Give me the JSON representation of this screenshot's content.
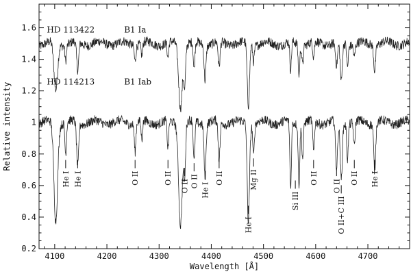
{
  "chart_data": {
    "type": "line",
    "title": "",
    "xlabel": "Wavelength [Å]",
    "ylabel": "Relative intensity",
    "xlim": [
      4070,
      4780
    ],
    "ylim": [
      0.2,
      1.75
    ],
    "xticks": [
      4100,
      4200,
      4300,
      4400,
      4500,
      4600,
      4700
    ],
    "yticks": [
      0.2,
      0.4,
      0.6,
      0.8,
      1,
      1.2,
      1.4,
      1.6
    ],
    "ytick_labels": [
      "0.2",
      "0.4",
      "0.6",
      "0.8",
      "1",
      "1.2",
      "1.4",
      "1.6"
    ],
    "grid": false,
    "series": [
      {
        "name": "HD 113422",
        "spectral_type": "B1 Ia",
        "baseline": 1.5,
        "noise": 0.03,
        "x_start": 4070,
        "x_end": 4780,
        "lines": [
          {
            "x": 4102,
            "depth": 0.3,
            "width": 3.5
          },
          {
            "x": 4121,
            "depth": 0.1,
            "width": 1.5
          },
          {
            "x": 4144,
            "depth": 0.18,
            "width": 2.0
          },
          {
            "x": 4254,
            "depth": 0.1,
            "width": 1.5
          },
          {
            "x": 4267,
            "depth": 0.08,
            "width": 1.5
          },
          {
            "x": 4317,
            "depth": 0.1,
            "width": 1.5
          },
          {
            "x": 4341,
            "depth": 0.4,
            "width": 3.5
          },
          {
            "x": 4349,
            "depth": 0.25,
            "width": 1.8
          },
          {
            "x": 4367,
            "depth": 0.18,
            "width": 1.5
          },
          {
            "x": 4388,
            "depth": 0.22,
            "width": 1.8
          },
          {
            "x": 4415,
            "depth": 0.16,
            "width": 1.8
          },
          {
            "x": 4471,
            "depth": 0.4,
            "width": 2.2
          },
          {
            "x": 4481,
            "depth": 0.1,
            "width": 1.5
          },
          {
            "x": 4552,
            "depth": 0.18,
            "width": 1.5
          },
          {
            "x": 4568,
            "depth": 0.2,
            "width": 1.5
          },
          {
            "x": 4575,
            "depth": 0.12,
            "width": 1.5
          },
          {
            "x": 4596,
            "depth": 0.1,
            "width": 1.5
          },
          {
            "x": 4640,
            "depth": 0.15,
            "width": 2.0
          },
          {
            "x": 4649,
            "depth": 0.25,
            "width": 2.0
          },
          {
            "x": 4661,
            "depth": 0.14,
            "width": 1.5
          },
          {
            "x": 4674,
            "depth": 0.08,
            "width": 1.5
          },
          {
            "x": 4713,
            "depth": 0.16,
            "width": 1.8
          }
        ]
      },
      {
        "name": "HD 114213",
        "spectral_type": "B1 Iab",
        "baseline": 1.0,
        "noise": 0.03,
        "x_start": 4070,
        "x_end": 4780,
        "lines": [
          {
            "x": 4102,
            "depth": 0.62,
            "width": 3.5
          },
          {
            "x": 4121,
            "depth": 0.2,
            "width": 1.5
          },
          {
            "x": 4144,
            "depth": 0.28,
            "width": 2.0
          },
          {
            "x": 4254,
            "depth": 0.18,
            "width": 1.5
          },
          {
            "x": 4267,
            "depth": 0.12,
            "width": 1.5
          },
          {
            "x": 4317,
            "depth": 0.18,
            "width": 1.5
          },
          {
            "x": 4341,
            "depth": 0.64,
            "width": 3.5
          },
          {
            "x": 4349,
            "depth": 0.32,
            "width": 1.8
          },
          {
            "x": 4367,
            "depth": 0.26,
            "width": 1.5
          },
          {
            "x": 4388,
            "depth": 0.34,
            "width": 1.8
          },
          {
            "x": 4415,
            "depth": 0.24,
            "width": 1.8
          },
          {
            "x": 4471,
            "depth": 0.62,
            "width": 2.2
          },
          {
            "x": 4481,
            "depth": 0.2,
            "width": 1.5
          },
          {
            "x": 4552,
            "depth": 0.42,
            "width": 1.5
          },
          {
            "x": 4568,
            "depth": 0.38,
            "width": 1.5
          },
          {
            "x": 4575,
            "depth": 0.22,
            "width": 1.5
          },
          {
            "x": 4596,
            "depth": 0.2,
            "width": 1.5
          },
          {
            "x": 4640,
            "depth": 0.3,
            "width": 2.0
          },
          {
            "x": 4649,
            "depth": 0.36,
            "width": 2.0
          },
          {
            "x": 4661,
            "depth": 0.22,
            "width": 1.5
          },
          {
            "x": 4674,
            "depth": 0.16,
            "width": 1.5
          },
          {
            "x": 4713,
            "depth": 0.3,
            "width": 1.8
          }
        ]
      }
    ],
    "annotations": [
      {
        "text": "He I",
        "x": 4121,
        "y_top": 0.71,
        "y_bottom": 0.59
      },
      {
        "text": "He I",
        "x": 4144,
        "y_top": 0.71,
        "y_bottom": 0.57
      },
      {
        "text": "O II",
        "x": 4254,
        "y_top": 0.71,
        "y_bottom": 0.61
      },
      {
        "text": "O II",
        "x": 4317,
        "y_top": 0.71,
        "y_bottom": 0.61
      },
      {
        "text": "O II",
        "x": 4349,
        "y_top": 0.66,
        "y_bottom": 0.52
      },
      {
        "text": "O II",
        "x": 4367,
        "y_top": 0.69,
        "y_bottom": 0.57
      },
      {
        "text": "He I",
        "x": 4388,
        "y_top": 0.64,
        "y_bottom": 0.5
      },
      {
        "text": "O II",
        "x": 4415,
        "y_top": 0.71,
        "y_bottom": 0.58
      },
      {
        "text": "He I",
        "x": 4471,
        "y_top": 0.42,
        "y_bottom": 0.3
      },
      {
        "text": "Mg II",
        "x": 4481,
        "y_top": 0.72,
        "y_bottom": 0.58
      },
      {
        "text": "Si III",
        "x": 4561,
        "y_top": 0.58,
        "y_bottom": 0.35
      },
      {
        "text": "O II",
        "x": 4596,
        "y_top": 0.71,
        "y_bottom": 0.61
      },
      {
        "text": "O II+C III",
        "x": 4649,
        "y_top": 0.55,
        "y_bottom": 0.35
      },
      {
        "text": "O II",
        "x": 4640,
        "y_top": 0.66,
        "y_bottom": 0.52
      },
      {
        "text": "O II",
        "x": 4674,
        "y_top": 0.71,
        "y_bottom": 0.61
      },
      {
        "text": "He I",
        "x": 4713,
        "y_top": 0.71,
        "y_bottom": 0.56
      }
    ]
  }
}
